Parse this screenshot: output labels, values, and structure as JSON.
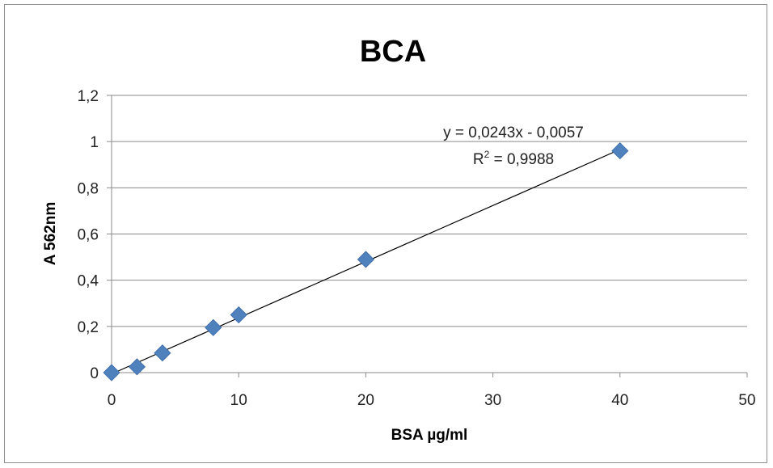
{
  "chart_data": {
    "type": "scatter",
    "title": "BCA",
    "xlabel": "BSA µg/ml",
    "ylabel": "A 562nm",
    "xlim": [
      0,
      50
    ],
    "ylim": [
      0,
      1.2
    ],
    "x_ticks": [
      "0",
      "10",
      "20",
      "30",
      "40",
      "50"
    ],
    "y_ticks": [
      "0",
      "0,2",
      "0,4",
      "0,6",
      "0,8",
      "1",
      "1,2"
    ],
    "grid": "horizontal",
    "marker_color": "#4f81bd",
    "series": [
      {
        "x": [
          0,
          2,
          4,
          8,
          10,
          20,
          40
        ],
        "y": [
          0.0,
          0.025,
          0.085,
          0.195,
          0.25,
          0.49,
          0.96
        ]
      }
    ],
    "trendline": {
      "slope": 0.0243,
      "intercept": -0.0057,
      "equation": "y = 0,0243x - 0,0057",
      "r2_label": "R",
      "r2_sup": "2",
      "r2_value": " = 0,9988"
    }
  }
}
